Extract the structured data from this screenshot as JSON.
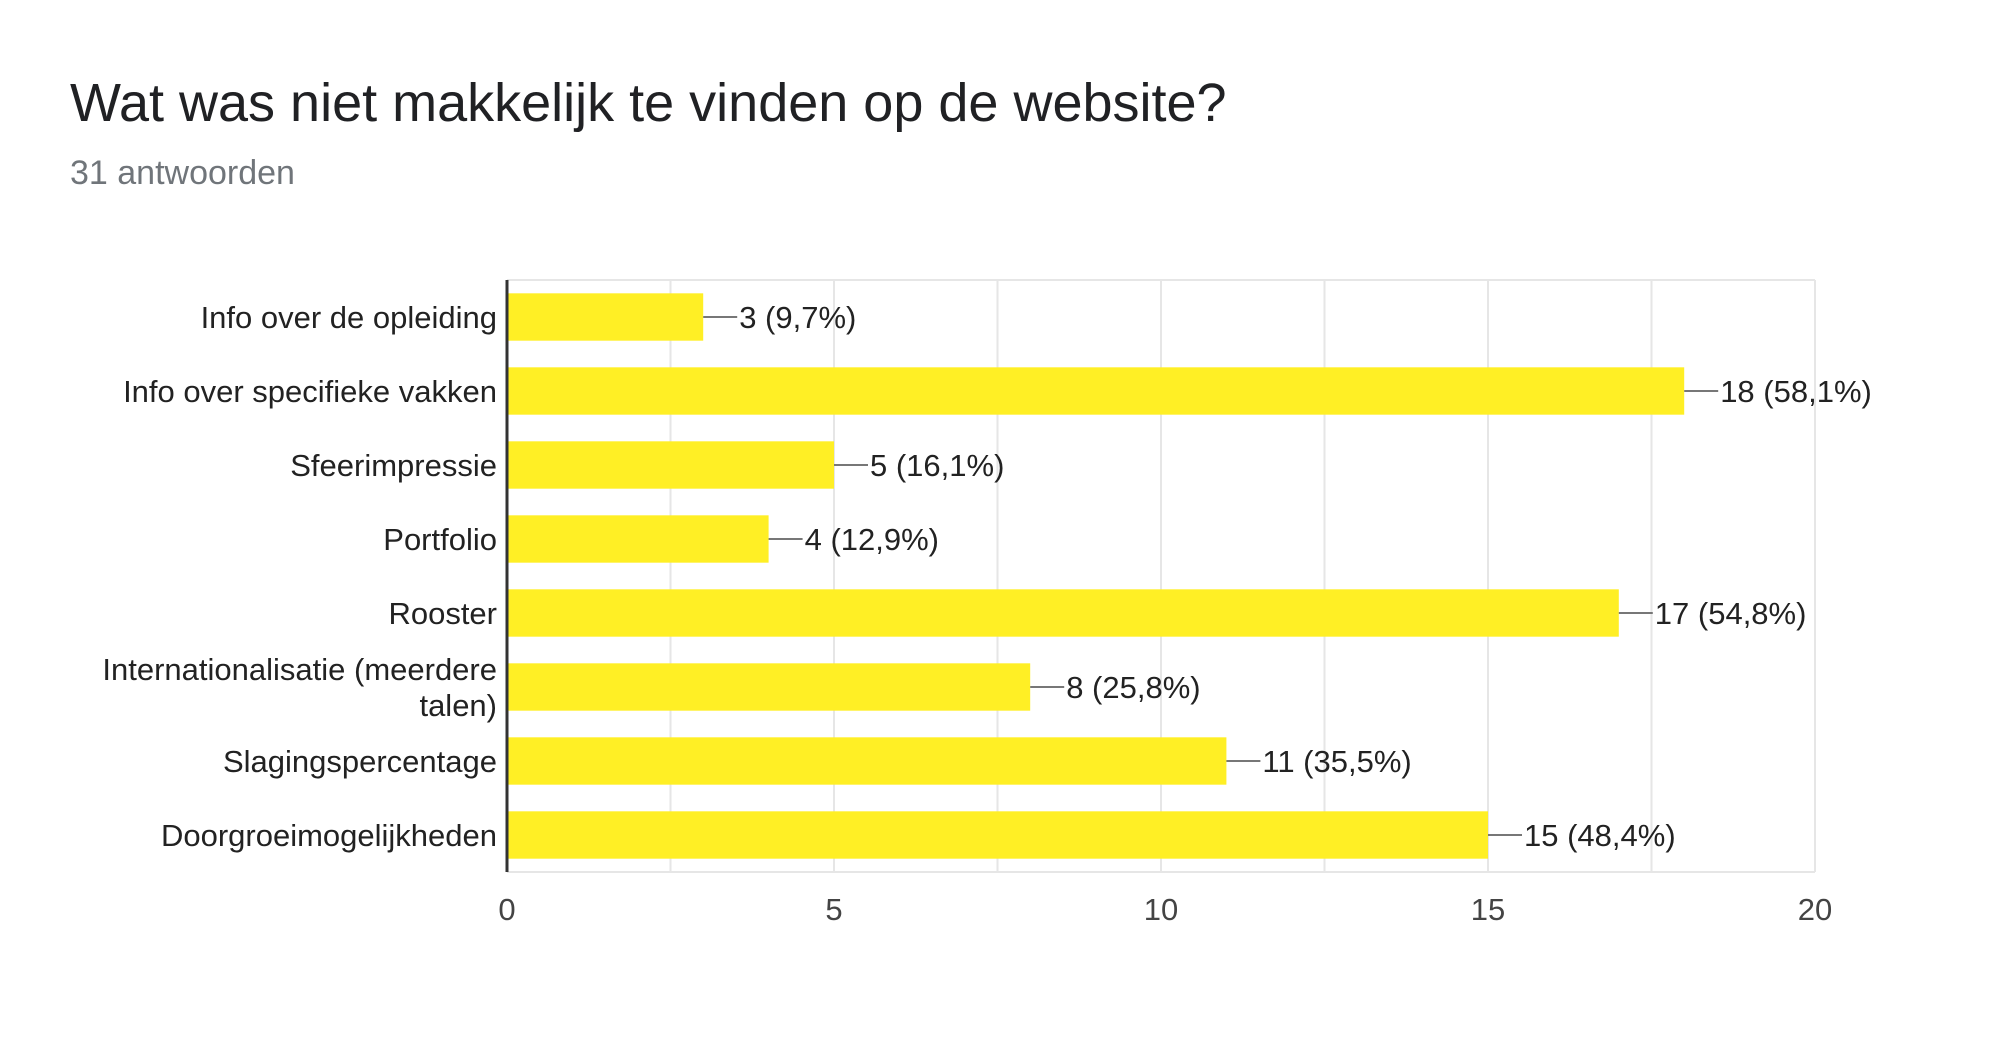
{
  "header": {
    "title": "Wat was niet makkelijk te vinden op de website?",
    "subtitle": "31 antwoorden"
  },
  "colors": {
    "bar": "#ffef25",
    "axis": "#333333",
    "grid": "#e6e6e6",
    "leader": "#777777"
  },
  "chart_data": {
    "type": "bar",
    "orientation": "horizontal",
    "categories": [
      [
        "Info over de opleiding"
      ],
      [
        "Info over specifieke vakken"
      ],
      [
        "Sfeerimpressie"
      ],
      [
        "Portfolio"
      ],
      [
        "Rooster"
      ],
      [
        "Internationalisatie (meerdere",
        "talen)"
      ],
      [
        "Slagingspercentage"
      ],
      [
        "Doorgroeimogelijkheden"
      ]
    ],
    "values": [
      3,
      18,
      5,
      4,
      17,
      8,
      11,
      15
    ],
    "data_labels": [
      "3 (9,7%)",
      "18 (58,1%)",
      "5 (16,1%)",
      "4 (12,9%)",
      "17 (54,8%)",
      "8 (25,8%)",
      "11 (35,5%)",
      "15 (48,4%)"
    ],
    "xlim": [
      0,
      20
    ],
    "xticks": [
      0,
      5,
      10,
      15,
      20
    ],
    "grid": true
  }
}
